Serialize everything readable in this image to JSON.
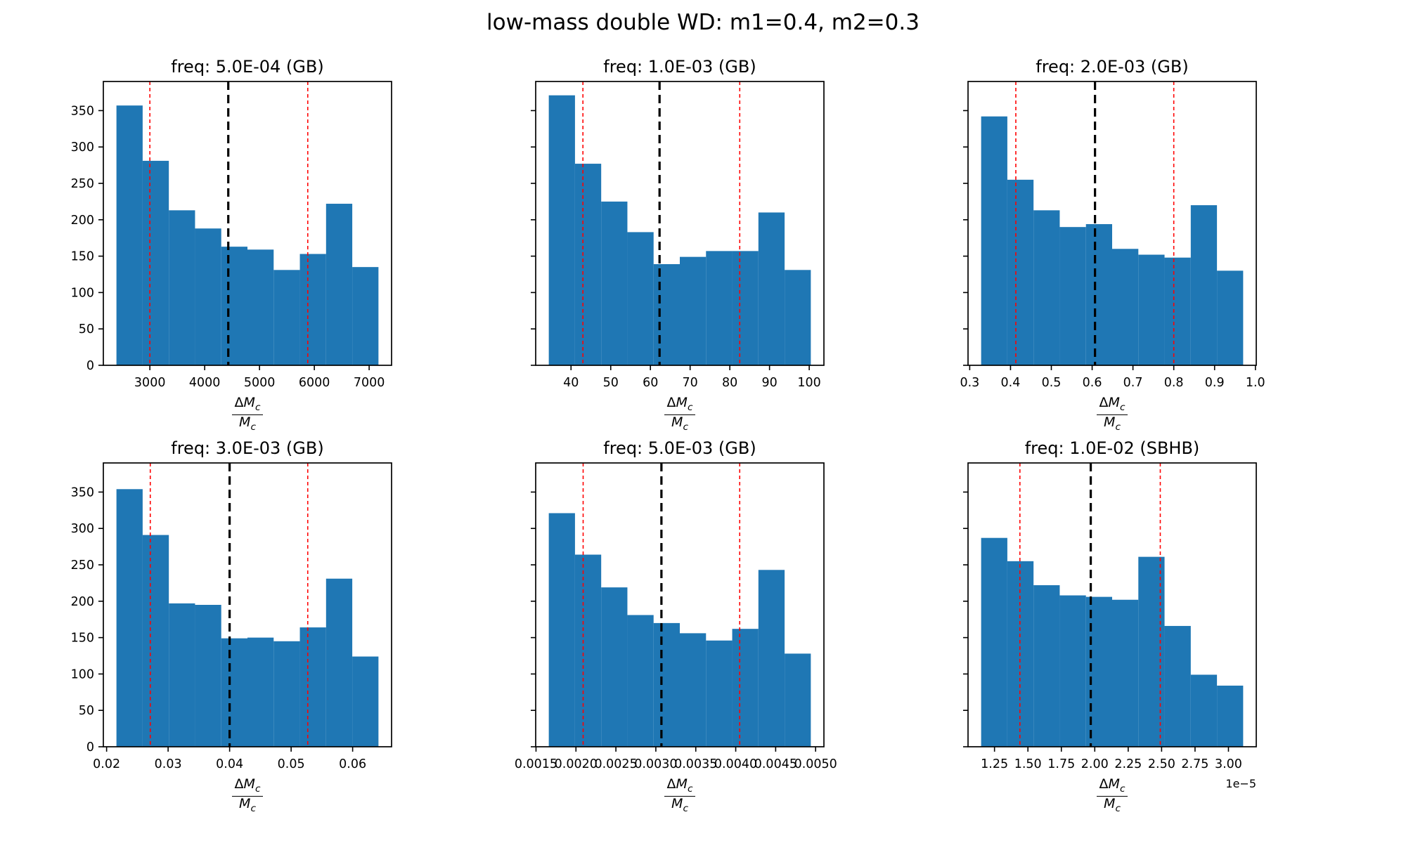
{
  "figure": {
    "title": "low-mass double WD: m1=0.4, m2=0.3",
    "background_color": "#ffffff",
    "bar_color": "#1f77b4",
    "red_line_color": "#ff0000",
    "black_line_color": "#000000",
    "xlabel_delta": "Δ",
    "xlabel_mass": "M",
    "xlabel_subscript": "c",
    "ytick_labels": [
      "0",
      "50",
      "100",
      "150",
      "200",
      "250",
      "300",
      "350"
    ],
    "yticks": [
      0,
      50,
      100,
      150,
      200,
      250,
      300,
      350
    ],
    "ylim": [
      0,
      390
    ]
  },
  "chart_data": [
    {
      "type": "bar",
      "title": "freq: 5.0E-04 (GB)",
      "xlabel": "ΔM_c / M_c",
      "bin_start": 2390,
      "bin_width": 478,
      "values": [
        357,
        281,
        213,
        188,
        163,
        159,
        131,
        153,
        222,
        135
      ],
      "red_vlines": [
        3000,
        5880
      ],
      "black_vline": 4430,
      "xticks": [
        3000,
        4000,
        5000,
        6000,
        7000
      ],
      "xtick_labels": [
        "3000",
        "4000",
        "5000",
        "6000",
        "7000"
      ],
      "show_ytick_labels": true,
      "x_offset_label": ""
    },
    {
      "type": "bar",
      "title": "freq: 1.0E-03 (GB)",
      "xlabel": "ΔM_c / M_c",
      "bin_start": 34.4,
      "bin_width": 6.6,
      "values": [
        371,
        277,
        225,
        183,
        139,
        149,
        157,
        157,
        210,
        131
      ],
      "red_vlines": [
        43.0,
        82.5
      ],
      "black_vline": 62.3,
      "xticks": [
        40,
        50,
        60,
        70,
        80,
        90,
        100
      ],
      "xtick_labels": [
        "40",
        "50",
        "60",
        "70",
        "80",
        "90",
        "100"
      ],
      "show_ytick_labels": false,
      "x_offset_label": ""
    },
    {
      "type": "bar",
      "title": "freq: 2.0E-03 (GB)",
      "xlabel": "ΔM_c / M_c",
      "bin_start": 0.328,
      "bin_width": 0.0642,
      "values": [
        342,
        255,
        213,
        190,
        194,
        160,
        152,
        148,
        220,
        130
      ],
      "red_vlines": [
        0.413,
        0.8
      ],
      "black_vline": 0.607,
      "xticks": [
        0.3,
        0.4,
        0.5,
        0.6,
        0.7,
        0.8,
        0.9,
        1.0
      ],
      "xtick_labels": [
        "0.3",
        "0.4",
        "0.5",
        "0.6",
        "0.7",
        "0.8",
        "0.9",
        "1.0"
      ],
      "show_ytick_labels": false,
      "x_offset_label": ""
    },
    {
      "type": "bar",
      "title": "freq: 3.0E-03 (GB)",
      "xlabel": "ΔM_c / M_c",
      "bin_start": 0.0216,
      "bin_width": 0.00426,
      "values": [
        354,
        291,
        197,
        195,
        149,
        150,
        145,
        164,
        231,
        124
      ],
      "red_vlines": [
        0.0271,
        0.0527
      ],
      "black_vline": 0.04,
      "xticks": [
        0.02,
        0.03,
        0.04,
        0.05,
        0.06
      ],
      "xtick_labels": [
        "0.02",
        "0.03",
        "0.04",
        "0.05",
        "0.06"
      ],
      "show_ytick_labels": true,
      "x_offset_label": ""
    },
    {
      "type": "bar",
      "title": "freq: 5.0E-03 (GB)",
      "xlabel": "ΔM_c / M_c",
      "bin_start": 0.00166,
      "bin_width": 0.000328,
      "values": [
        321,
        264,
        219,
        181,
        170,
        156,
        146,
        162,
        243,
        128
      ],
      "red_vlines": [
        0.00209,
        0.00405
      ],
      "black_vline": 0.00307,
      "xticks": [
        0.0015,
        0.002,
        0.0025,
        0.003,
        0.0035,
        0.004,
        0.0045,
        0.005
      ],
      "xtick_labels": [
        "0.0015",
        "0.0020",
        "0.0025",
        "0.0030",
        "0.0035",
        "0.0040",
        "0.0045",
        "0.0050"
      ],
      "show_ytick_labels": false,
      "x_offset_label": ""
    },
    {
      "type": "bar",
      "title": "freq: 1.0E-02 (SBHB)",
      "xlabel": "ΔM_c / M_c",
      "bin_start": 1.15,
      "bin_width": 0.196,
      "values": [
        287,
        255,
        222,
        208,
        206,
        202,
        261,
        166,
        99,
        84
      ],
      "red_vlines": [
        1.44,
        2.49
      ],
      "black_vline": 1.97,
      "xticks": [
        1.25,
        1.5,
        1.75,
        2.0,
        2.25,
        2.5,
        2.75,
        3.0
      ],
      "xtick_labels": [
        "1.25",
        "1.50",
        "1.75",
        "2.00",
        "2.25",
        "2.50",
        "2.75",
        "3.00"
      ],
      "show_ytick_labels": false,
      "x_offset_label": "1e−5"
    }
  ]
}
